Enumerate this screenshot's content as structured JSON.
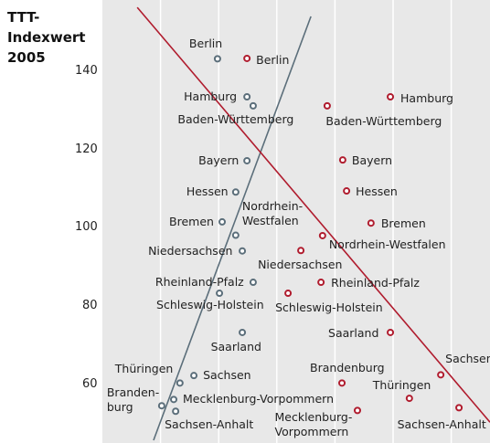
{
  "chart_data": {
    "type": "scatter",
    "y_axis_label": "TTT-\nIndexwert\n2005",
    "xlim": [
      0,
      100
    ],
    "ylim": [
      45,
      158
    ],
    "xticks": [
      15,
      30,
      45,
      60,
      75,
      90
    ],
    "yticks": [
      60,
      80,
      100,
      120,
      140
    ],
    "grid": "x",
    "series": [
      {
        "color": "#5b6e7a",
        "labels": [
          "Berlin",
          "Hamburg",
          "Baden-Württemberg",
          "Bayern",
          "Hessen",
          "Bremen",
          "Nordrhein-\nWestfalen",
          "Niedersachsen",
          "Rheinland-Pfalz",
          "Schleswig-Holstein",
          "Saarland",
          "Thüringen",
          "Sachsen",
          "Branden-\nburg",
          "Mecklenburg-Vorpommern",
          "Sachsen-Anhalt"
        ],
        "x": [
          29.7,
          37.3,
          38.9,
          37.3,
          34.4,
          30.9,
          34.4,
          36.1,
          38.9,
          30.2,
          36.1,
          20,
          23.6,
          15.3,
          18.4,
          18.9
        ],
        "values": [
          143,
          133.3,
          131,
          117,
          109,
          101.4,
          98,
          94,
          86,
          83.2,
          73.2,
          60.3,
          62.2,
          54.5,
          56.1,
          53.1
        ],
        "trend": {
          "x": [
            13.2,
            53.8
          ],
          "values": [
            45.7,
            153.8
          ]
        }
      },
      {
        "color": "#b01c2e",
        "labels": [
          "Berlin",
          "Hamburg",
          "Baden-Württemberg",
          "Bayern",
          "Hessen",
          "Bremen",
          "Nordrhein-Westfalen",
          "Niedersachsen",
          "Rheinland-Pfalz",
          "Schleswig-Holstein",
          "Saarland",
          "Brandenburg",
          "Sachsen",
          "Thüringen",
          "Mecklenburg-\nVorpommern",
          "Sachsen-Anhalt"
        ],
        "x": [
          37.3,
          74.3,
          58,
          62,
          63,
          69.3,
          56.8,
          51.2,
          56.4,
          47.9,
          74.3,
          61.8,
          87.3,
          79.2,
          65.8,
          92
        ],
        "values": [
          143.1,
          133.3,
          131,
          117.2,
          109.3,
          101.1,
          97.9,
          94.1,
          86,
          83.2,
          73.2,
          60.3,
          62.4,
          56.4,
          53.3,
          54
        ],
        "trend": {
          "x": [
            9,
            100
          ],
          "values": [
            156.1,
            50.3
          ]
        }
      }
    ]
  }
}
